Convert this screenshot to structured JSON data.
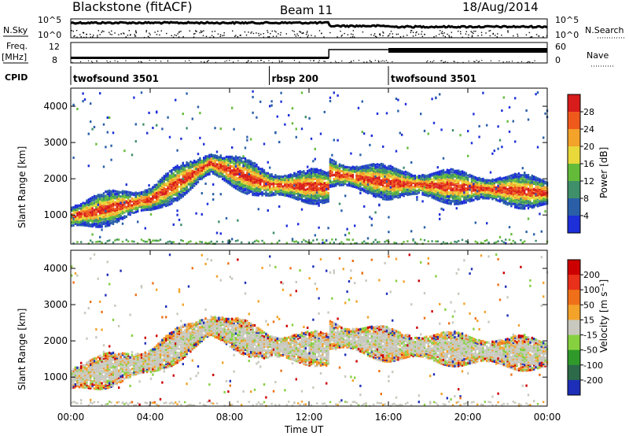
{
  "header": {
    "station": "Blackstone (fitACF)",
    "beam": "Beam 11",
    "date": "18/Aug/2014"
  },
  "status_panel": {
    "nsky_label": "N.Sky",
    "nsearch_label": "N.Search",
    "freq_label": "Freq.",
    "freq_unit": "[MHz]",
    "nave_label": "Nave",
    "cpid_label": "CPID",
    "left_ticks_top": [
      "10^5",
      "10^0"
    ],
    "right_ticks_top": [
      "10^5",
      "10^0"
    ],
    "left_ticks_freq": [
      "12",
      "8"
    ],
    "right_ticks_nave": [
      "60",
      "0"
    ],
    "cpid_segments": [
      {
        "name": "twofsound 3501",
        "start": 0,
        "end": 10
      },
      {
        "name": "rbsp 200",
        "start": 10,
        "end": 16
      },
      {
        "name": "twofsound 3501",
        "start": 16,
        "end": 24
      }
    ]
  },
  "chart_data": [
    {
      "type": "heatmap",
      "name": "power",
      "ylabel": "Slant Range [km]",
      "xlabel": "Time UT",
      "yticks": [
        "1000",
        "2000",
        "3000",
        "4000"
      ],
      "xticks": [
        "00:00",
        "04:00",
        "08:00",
        "12:00",
        "16:00",
        "20:00",
        "00:00"
      ],
      "ylim": [
        200,
        4500
      ],
      "xlim": [
        0,
        24
      ],
      "colorbar_label": "Power [dB]",
      "colorbar_ticks": [
        "28",
        "24",
        "20",
        "16",
        "12",
        "8",
        "4"
      ],
      "colors": [
        "#1d2fd8",
        "#2a5fa8",
        "#3f8f6a",
        "#64bb3a",
        "#e8d83a",
        "#f3a22a",
        "#ef5a1c",
        "#d81c1c"
      ],
      "grid": false
    },
    {
      "type": "heatmap",
      "name": "velocity",
      "ylabel": "Slant Range [km]",
      "xlabel": "Time UT",
      "yticks": [
        "1000",
        "2000",
        "3000",
        "4000"
      ],
      "xticks": [
        "00:00",
        "04:00",
        "08:00",
        "12:00",
        "16:00",
        "20:00",
        "00:00"
      ],
      "ylim": [
        200,
        4500
      ],
      "xlim": [
        0,
        24
      ],
      "colorbar_label": "Velocity [m s⁻¹]",
      "colorbar_ticks": [
        "200",
        "100",
        "50",
        "15",
        "-15",
        "-50",
        "-100",
        "-200"
      ],
      "colors": [
        "#1d2fb8",
        "#2c6a4a",
        "#2f9a2a",
        "#86d040",
        "#c8c8be",
        "#f3a22a",
        "#ef7018",
        "#e8301a",
        "#cc0000"
      ],
      "grid": false
    }
  ]
}
